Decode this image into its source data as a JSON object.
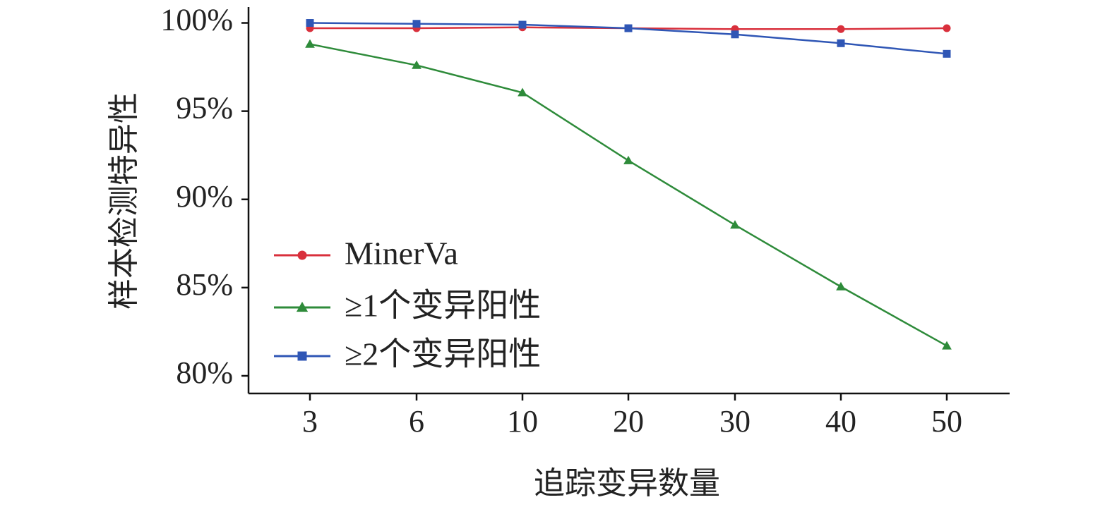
{
  "chart_data": {
    "type": "line",
    "title": "",
    "xlabel": "追踪变异数量",
    "ylabel": "样本检测特异性",
    "categories": [
      "3",
      "6",
      "10",
      "20",
      "30",
      "40",
      "50"
    ],
    "y_ticks": [
      "80%",
      "85%",
      "90%",
      "95%",
      "100%"
    ],
    "y_tick_values": [
      80,
      85,
      90,
      95,
      100
    ],
    "ylim": [
      79,
      100.9
    ],
    "grid": false,
    "legend_position": "left",
    "series": [
      {
        "name": "MinerVa",
        "marker": "circle",
        "color": "#d9303c",
        "values": [
          99.7,
          99.7,
          99.75,
          99.7,
          99.65,
          99.65,
          99.7
        ]
      },
      {
        "name": "≥1个变异阳性",
        "marker": "triangle",
        "color": "#2e8b3a",
        "values": [
          98.8,
          97.6,
          96.05,
          92.2,
          88.55,
          85.05,
          81.7
        ]
      },
      {
        "name": "≥2个变异阳性",
        "marker": "square",
        "color": "#2f56b5",
        "values": [
          100,
          99.95,
          99.9,
          99.7,
          99.35,
          98.85,
          98.25
        ]
      }
    ]
  }
}
